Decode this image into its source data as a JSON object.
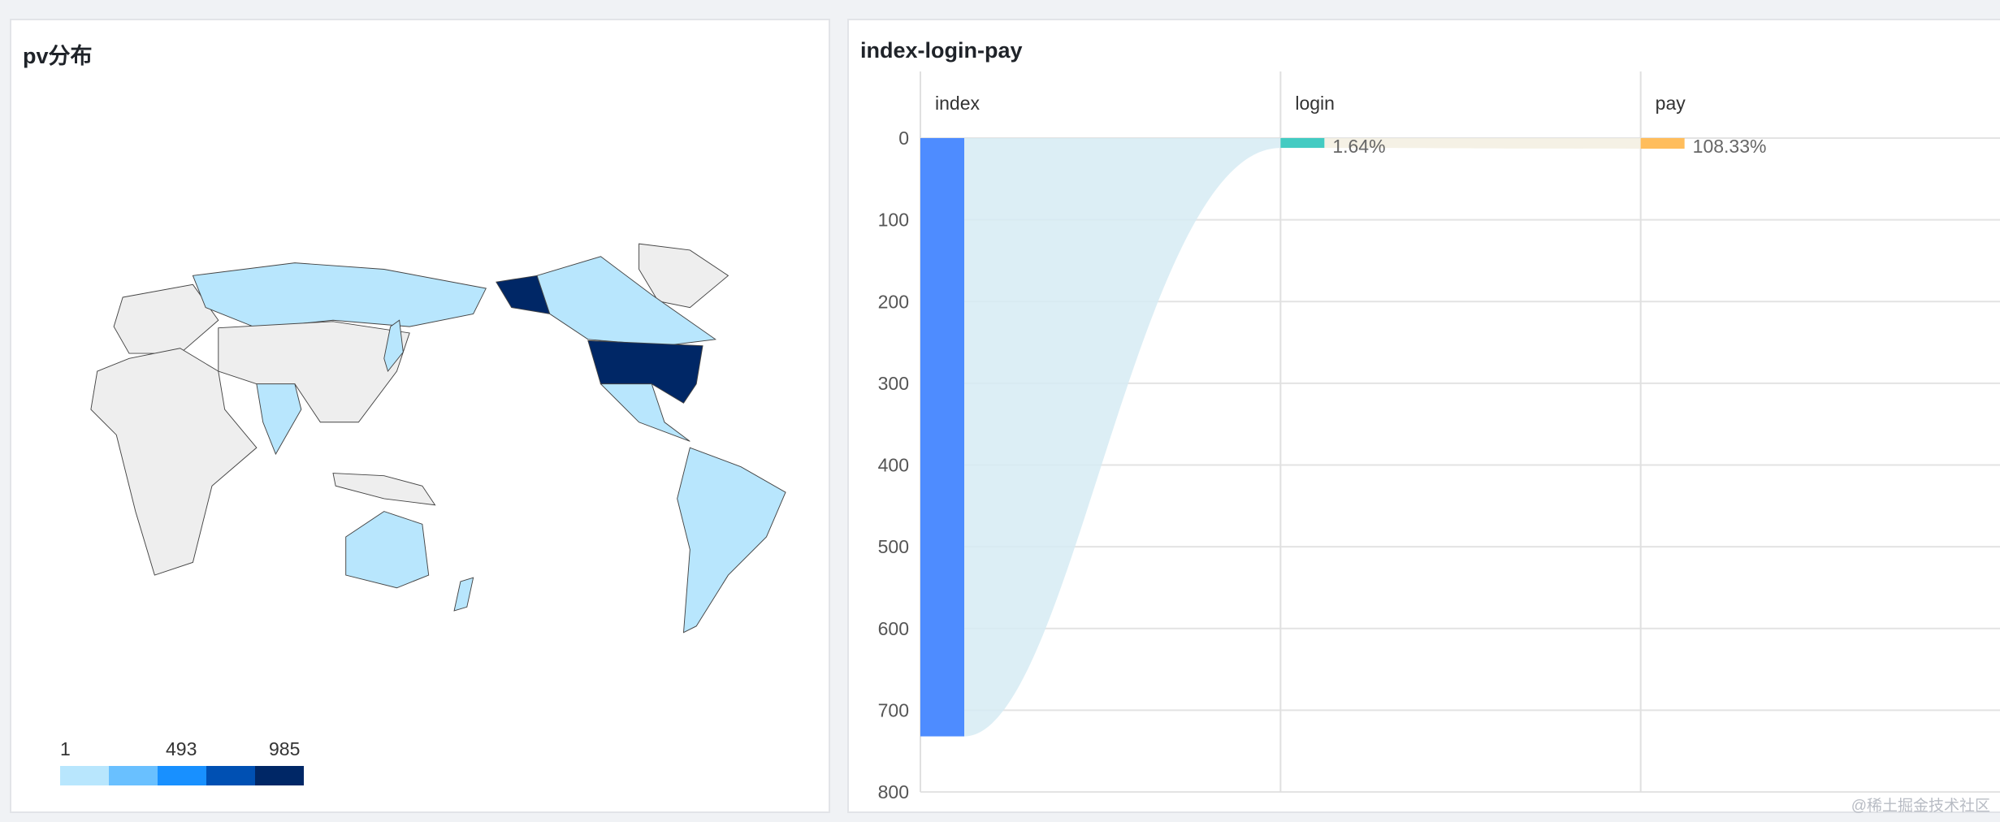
{
  "map_panel": {
    "title": "pv分布",
    "legend": {
      "min_label": "1",
      "mid_label": "493",
      "max_label": "985",
      "colors": [
        "#b8e6fd",
        "#69c0ff",
        "#1890ff",
        "#0050b3",
        "#002766"
      ]
    },
    "region_colors": {
      "unvisited": "#eeeeee",
      "border": "#444444"
    }
  },
  "chart_data": {
    "type": "funnel",
    "title": "index-login-pay",
    "categories": [
      "index",
      "login",
      "pay"
    ],
    "values": [
      732,
      12,
      13
    ],
    "conversion_labels": [
      "",
      "1.64%",
      "108.33%"
    ],
    "colors": [
      "#4e8cff",
      "#43cbc2",
      "#ffbd5c"
    ],
    "ylim": [
      0,
      800
    ],
    "yticks": [
      "0",
      "100",
      "200",
      "300",
      "400",
      "500",
      "600",
      "700",
      "800"
    ],
    "grid": true
  },
  "watermark": "@稀土掘金技术社区"
}
